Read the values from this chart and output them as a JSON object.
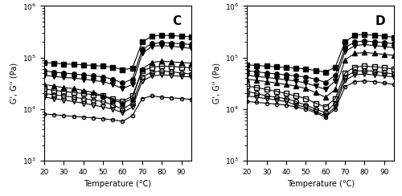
{
  "temp": [
    20,
    25,
    30,
    35,
    40,
    45,
    50,
    55,
    60,
    65,
    70,
    75,
    80,
    85,
    90,
    95
  ],
  "panel_C": {
    "label": "C",
    "solid_sq": [
      80000,
      78000,
      75000,
      74000,
      72000,
      70000,
      68000,
      65000,
      58000,
      62000,
      200000,
      260000,
      270000,
      265000,
      260000,
      250000
    ],
    "solid_circ": [
      55000,
      52000,
      50000,
      48000,
      46000,
      44000,
      42000,
      38000,
      32000,
      38000,
      145000,
      185000,
      195000,
      190000,
      185000,
      178000
    ],
    "solid_tri_up": [
      45000,
      43000,
      41000,
      40000,
      38000,
      36000,
      34000,
      30000,
      25000,
      30000,
      120000,
      165000,
      170000,
      165000,
      158000,
      150000
    ],
    "solid_tri_dn": [
      30000,
      28000,
      26000,
      25000,
      23000,
      21000,
      18000,
      15000,
      13000,
      16000,
      60000,
      80000,
      85000,
      82000,
      80000,
      78000
    ],
    "open_sq": [
      25000,
      23000,
      22000,
      21000,
      20000,
      19000,
      18000,
      16000,
      14000,
      18000,
      55000,
      65000,
      68000,
      67000,
      65000,
      63000
    ],
    "open_circ": [
      20000,
      19000,
      18000,
      17000,
      16000,
      15000,
      14000,
      12000,
      10000,
      13000,
      42000,
      52000,
      55000,
      53000,
      50000,
      48000
    ],
    "open_tri_dn": [
      17000,
      16000,
      15000,
      14000,
      13000,
      12000,
      11000,
      10000,
      8500,
      11000,
      35000,
      44000,
      46000,
      45000,
      43000,
      42000
    ],
    "open_tri_up": [
      8000,
      7800,
      7500,
      7200,
      7000,
      6800,
      6500,
      6200,
      5800,
      7500,
      16000,
      18000,
      17000,
      16500,
      16000,
      15500
    ]
  },
  "panel_D": {
    "label": "D",
    "solid_sq": [
      72000,
      70000,
      68000,
      66000,
      64000,
      62000,
      60000,
      56000,
      52000,
      65000,
      200000,
      270000,
      280000,
      270000,
      260000,
      245000
    ],
    "solid_circ": [
      55000,
      53000,
      50000,
      48000,
      46000,
      44000,
      42000,
      38000,
      33000,
      45000,
      155000,
      200000,
      210000,
      200000,
      195000,
      185000
    ],
    "solid_tri_up": [
      45000,
      43000,
      41000,
      39000,
      37000,
      35000,
      32000,
      28000,
      24000,
      35000,
      130000,
      170000,
      178000,
      170000,
      162000,
      155000
    ],
    "solid_tri_dn": [
      38000,
      36000,
      34000,
      32000,
      30000,
      28000,
      25000,
      21000,
      17000,
      24000,
      90000,
      120000,
      125000,
      120000,
      115000,
      110000
    ],
    "open_sq": [
      28000,
      26000,
      24000,
      22000,
      20000,
      18000,
      16000,
      13000,
      11000,
      16000,
      50000,
      65000,
      68000,
      66000,
      63000,
      60000
    ],
    "open_circ": [
      22000,
      20000,
      18000,
      17000,
      16000,
      14000,
      12000,
      10000,
      8500,
      13000,
      42000,
      54000,
      56000,
      54000,
      51000,
      48000
    ],
    "open_tri_dn": [
      18000,
      17000,
      16000,
      15000,
      14000,
      12000,
      11000,
      9000,
      7500,
      11000,
      36000,
      46000,
      48000,
      46000,
      44000,
      42000
    ],
    "open_tri_up": [
      14000,
      13500,
      13000,
      12500,
      12000,
      11000,
      10000,
      8500,
      7000,
      10000,
      27000,
      34000,
      35000,
      34000,
      32000,
      30000
    ]
  },
  "xlim": [
    20,
    95
  ],
  "ylim": [
    1000,
    1000000
  ],
  "xlabel": "Temperature (°C)",
  "ylabel": "G', G'' (Pa)",
  "xticks": [
    20,
    30,
    40,
    50,
    60,
    70,
    80,
    90
  ],
  "color": "black",
  "markersize": 4,
  "linewidth": 0.8
}
